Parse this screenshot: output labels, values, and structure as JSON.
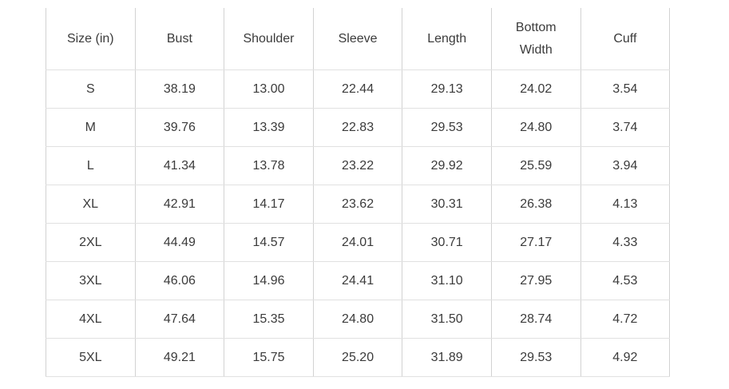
{
  "table": {
    "columns": [
      "Size (in)",
      "Bust",
      "Shoulder",
      "Sleeve",
      "Length",
      "Bottom Width",
      "Cuff"
    ],
    "rows": [
      {
        "size": "S",
        "values": [
          "38.19",
          "13.00",
          "22.44",
          "29.13",
          "24.02",
          "3.54"
        ]
      },
      {
        "size": "M",
        "values": [
          "39.76",
          "13.39",
          "22.83",
          "29.53",
          "24.80",
          "3.74"
        ]
      },
      {
        "size": "L",
        "values": [
          "41.34",
          "13.78",
          "23.22",
          "29.92",
          "25.59",
          "3.94"
        ]
      },
      {
        "size": "XL",
        "values": [
          "42.91",
          "14.17",
          "23.62",
          "30.31",
          "26.38",
          "4.13"
        ]
      },
      {
        "size": "2XL",
        "values": [
          "44.49",
          "14.57",
          "24.01",
          "30.71",
          "27.17",
          "4.33"
        ]
      },
      {
        "size": "3XL",
        "values": [
          "46.06",
          "14.96",
          "24.41",
          "31.10",
          "27.95",
          "4.53"
        ]
      },
      {
        "size": "4XL",
        "values": [
          "47.64",
          "15.35",
          "24.80",
          "31.50",
          "28.74",
          "4.72"
        ]
      },
      {
        "size": "5XL",
        "values": [
          "49.21",
          "15.75",
          "25.20",
          "31.89",
          "29.53",
          "4.92"
        ]
      }
    ]
  },
  "colors": {
    "text": "#3b3b3b",
    "border_vertical": "#d2d2d2",
    "border_horizontal": "#e1e1e1",
    "background": "#ffffff"
  }
}
